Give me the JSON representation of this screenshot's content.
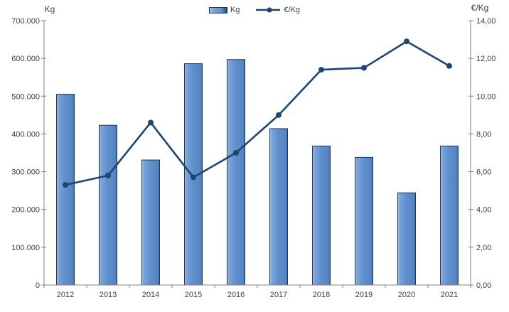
{
  "axis_titles": {
    "left": "Kg",
    "right": "€/Kg"
  },
  "legend": {
    "items": [
      {
        "label": "Kg",
        "swatch": "bar-swatch"
      },
      {
        "label": "€/Kg",
        "swatch": "line-swatch"
      }
    ]
  },
  "chart_data": {
    "type": "combo-bar-line",
    "categories": [
      "2012",
      "2013",
      "2014",
      "2015",
      "2016",
      "2017",
      "2018",
      "2019",
      "2020",
      "2021"
    ],
    "series": [
      {
        "name": "Kg",
        "type": "bar",
        "axis": "left",
        "values": [
          505000,
          423000,
          331000,
          586000,
          597000,
          414000,
          368000,
          338000,
          244000,
          368000
        ]
      },
      {
        "name": "€/Kg",
        "type": "line",
        "axis": "right",
        "values": [
          5.3,
          5.8,
          8.6,
          5.7,
          7.0,
          9.0,
          11.4,
          11.5,
          12.9,
          11.6
        ]
      }
    ],
    "left_axis": {
      "title": "Kg",
      "min": 0,
      "max": 700000,
      "step": 100000,
      "tick_labels": [
        "0",
        "100.000",
        "200.000",
        "300.000",
        "400.000",
        "500.000",
        "600.000",
        "700.000"
      ]
    },
    "right_axis": {
      "title": "€/Kg",
      "min": 0,
      "max": 14,
      "step": 2,
      "tick_labels": [
        "0,00",
        "2,00",
        "4,00",
        "6,00",
        "8,00",
        "10,00",
        "12,00",
        "14,00"
      ]
    },
    "grid": false,
    "legend_position": "top-center"
  },
  "colors": {
    "bar_fill_light": "#A6C1E4",
    "bar_fill_mid": "#6090CC",
    "bar_fill_dark": "#3E6CA4",
    "bar_border": "#17375E",
    "line": "#1F4571",
    "axis": "#808080",
    "text": "#404040",
    "background": "#FFFFFF"
  }
}
